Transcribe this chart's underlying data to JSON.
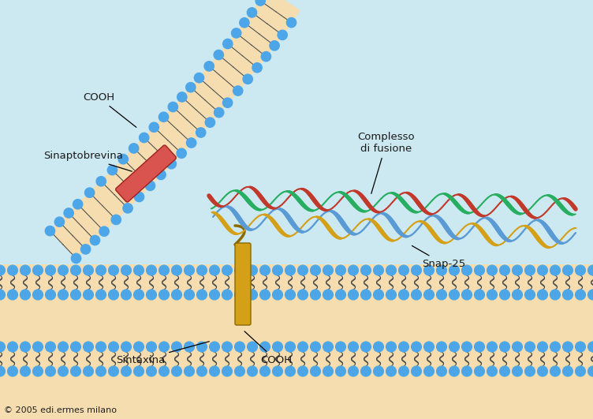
{
  "bg_color": "#cce8f0",
  "fill_col": "#f5ddb0",
  "head_col": "#4da6e8",
  "tail_col": "#4a4a4a",
  "synaptobrevin_color": "#d9534f",
  "syntaxin_color": "#d4a017",
  "helix_red": "#c0392b",
  "helix_green": "#27ae60",
  "helix_blue": "#5b9bd5",
  "helix_yellow": "#d4a017",
  "label_color": "#1a1a1a",
  "labels": {
    "cooh_top": "COOH",
    "sinaptobrevina": "Sinaptobrevina",
    "complesso": "Complesso\ndi fusione",
    "snap25": "Snap-25",
    "sintaxina": "Sintaxina",
    "cooh_bottom": "COOH",
    "copyright": "© 2005 edi.ermes milano"
  },
  "fig_width": 7.52,
  "fig_height": 5.31,
  "dpi": 100
}
